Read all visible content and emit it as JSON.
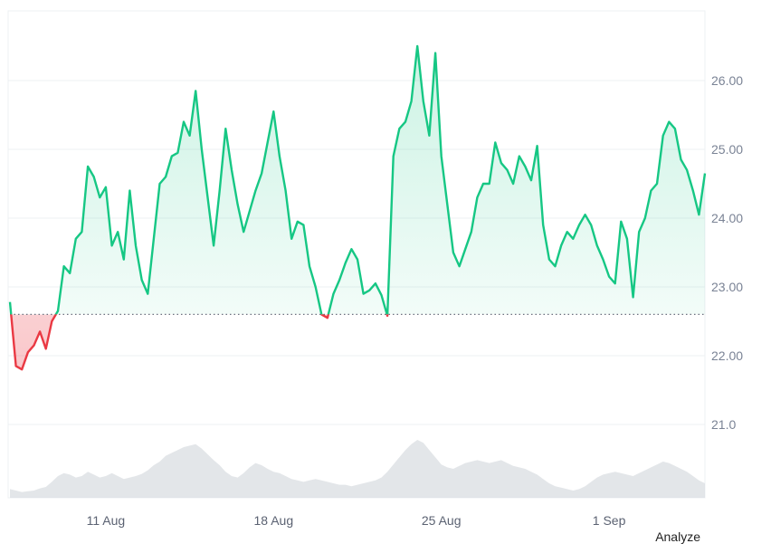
{
  "chart_data": {
    "type": "area",
    "baseline": 22.6,
    "ylim": [
      20.0,
      27.0
    ],
    "y_ticks": [
      "21.0",
      "22.00",
      "23.00",
      "24.00",
      "25.00",
      "26.00"
    ],
    "x_ticks": [
      "11 Aug",
      "18 Aug",
      "25 Aug",
      "1 Sep"
    ],
    "x": [
      "2024-08-07",
      "2024-08-07 06:00",
      "2024-08-07 12:00",
      "2024-08-07 18:00",
      "2024-08-08",
      "2024-08-08 06:00",
      "2024-08-08 12:00",
      "2024-08-08 18:00",
      "2024-08-09",
      "2024-08-09 06:00",
      "2024-08-09 12:00",
      "2024-08-09 18:00",
      "2024-08-10",
      "2024-08-10 06:00",
      "2024-08-10 12:00",
      "2024-08-10 18:00",
      "2024-08-11",
      "2024-08-11 06:00",
      "2024-08-11 12:00",
      "2024-08-11 18:00",
      "2024-08-12",
      "2024-08-12 06:00",
      "2024-08-12 12:00",
      "2024-08-12 18:00",
      "2024-08-13",
      "2024-08-13 06:00",
      "2024-08-13 12:00",
      "2024-08-13 18:00",
      "2024-08-14",
      "2024-08-14 06:00",
      "2024-08-14 12:00",
      "2024-08-14 18:00",
      "2024-08-15",
      "2024-08-15 06:00",
      "2024-08-15 12:00",
      "2024-08-15 18:00",
      "2024-08-16",
      "2024-08-16 06:00",
      "2024-08-16 12:00",
      "2024-08-16 18:00",
      "2024-08-17",
      "2024-08-17 06:00",
      "2024-08-17 12:00",
      "2024-08-17 18:00",
      "2024-08-18",
      "2024-08-18 06:00",
      "2024-08-18 12:00",
      "2024-08-18 18:00",
      "2024-08-19",
      "2024-08-19 06:00",
      "2024-08-19 12:00",
      "2024-08-19 18:00",
      "2024-08-20",
      "2024-08-20 06:00",
      "2024-08-20 12:00",
      "2024-08-20 18:00",
      "2024-08-21",
      "2024-08-21 06:00",
      "2024-08-21 12:00",
      "2024-08-21 18:00",
      "2024-08-22",
      "2024-08-22 06:00",
      "2024-08-22 12:00",
      "2024-08-22 18:00",
      "2024-08-23",
      "2024-08-23 06:00",
      "2024-08-23 12:00",
      "2024-08-23 18:00",
      "2024-08-24",
      "2024-08-24 06:00",
      "2024-08-24 12:00",
      "2024-08-24 18:00",
      "2024-08-25",
      "2024-08-25 06:00",
      "2024-08-25 12:00",
      "2024-08-25 18:00",
      "2024-08-26",
      "2024-08-26 06:00",
      "2024-08-26 12:00",
      "2024-08-26 18:00",
      "2024-08-27",
      "2024-08-27 06:00",
      "2024-08-27 12:00",
      "2024-08-27 18:00",
      "2024-08-28",
      "2024-08-28 06:00",
      "2024-08-28 12:00",
      "2024-08-28 18:00",
      "2024-08-29",
      "2024-08-29 06:00",
      "2024-08-29 12:00",
      "2024-08-29 18:00",
      "2024-08-30",
      "2024-08-30 06:00",
      "2024-08-30 12:00",
      "2024-08-30 18:00",
      "2024-08-31",
      "2024-08-31 06:00",
      "2024-08-31 12:00",
      "2024-08-31 18:00",
      "2024-09-01",
      "2024-09-01 06:00",
      "2024-09-01 12:00",
      "2024-09-01 18:00",
      "2024-09-02",
      "2024-09-02 06:00",
      "2024-09-02 12:00",
      "2024-09-02 18:00",
      "2024-09-03",
      "2024-09-03 06:00",
      "2024-09-03 12:00",
      "2024-09-03 18:00",
      "2024-09-04",
      "2024-09-04 06:00",
      "2024-09-04 12:00",
      "2024-09-04 18:00",
      "2024-09-05"
    ],
    "y": [
      22.78,
      21.85,
      21.8,
      22.05,
      22.15,
      22.35,
      22.1,
      22.5,
      22.65,
      23.3,
      23.2,
      23.7,
      23.8,
      24.75,
      24.6,
      24.3,
      24.45,
      23.6,
      23.8,
      23.4,
      24.4,
      23.6,
      23.1,
      22.9,
      23.7,
      24.5,
      24.6,
      24.9,
      24.95,
      25.4,
      25.2,
      25.85,
      25.0,
      24.3,
      23.6,
      24.4,
      25.3,
      24.7,
      24.2,
      23.8,
      24.1,
      24.4,
      24.65,
      25.1,
      25.55,
      24.9,
      24.4,
      23.7,
      23.95,
      23.9,
      23.3,
      23.0,
      22.6,
      22.55,
      22.9,
      23.1,
      23.35,
      23.55,
      23.4,
      22.9,
      22.95,
      23.05,
      22.88,
      22.58,
      24.9,
      25.3,
      25.4,
      25.7,
      26.5,
      25.7,
      25.2,
      26.4,
      24.9,
      24.2,
      23.5,
      23.3,
      23.55,
      23.8,
      24.3,
      24.5,
      24.5,
      25.1,
      24.8,
      24.7,
      24.5,
      24.9,
      24.75,
      24.55,
      25.05,
      23.9,
      23.4,
      23.3,
      23.6,
      23.8,
      23.7,
      23.9,
      24.05,
      23.9,
      23.6,
      23.4,
      23.15,
      23.05,
      23.95,
      23.7,
      22.85,
      23.8,
      24.0,
      24.4,
      24.5,
      25.2,
      25.4,
      25.3,
      24.85,
      24.7,
      24.4,
      24.05,
      24.65
    ],
    "volume": [
      0.12,
      0.1,
      0.08,
      0.09,
      0.1,
      0.13,
      0.15,
      0.22,
      0.3,
      0.34,
      0.32,
      0.28,
      0.3,
      0.36,
      0.32,
      0.28,
      0.3,
      0.34,
      0.3,
      0.26,
      0.28,
      0.3,
      0.33,
      0.38,
      0.45,
      0.5,
      0.58,
      0.62,
      0.66,
      0.7,
      0.72,
      0.74,
      0.68,
      0.6,
      0.52,
      0.45,
      0.36,
      0.3,
      0.28,
      0.34,
      0.42,
      0.48,
      0.45,
      0.4,
      0.36,
      0.34,
      0.3,
      0.26,
      0.24,
      0.22,
      0.24,
      0.26,
      0.24,
      0.22,
      0.2,
      0.18,
      0.18,
      0.16,
      0.18,
      0.2,
      0.22,
      0.24,
      0.28,
      0.36,
      0.46,
      0.56,
      0.66,
      0.74,
      0.8,
      0.76,
      0.66,
      0.56,
      0.46,
      0.42,
      0.4,
      0.44,
      0.48,
      0.5,
      0.52,
      0.5,
      0.48,
      0.5,
      0.52,
      0.48,
      0.44,
      0.42,
      0.4,
      0.36,
      0.32,
      0.26,
      0.2,
      0.16,
      0.14,
      0.12,
      0.1,
      0.12,
      0.16,
      0.22,
      0.28,
      0.32,
      0.34,
      0.36,
      0.34,
      0.32,
      0.3,
      0.34,
      0.38,
      0.42,
      0.46,
      0.5,
      0.48,
      0.44,
      0.4,
      0.36,
      0.3,
      0.24,
      0.2
    ],
    "colors": {
      "up_line": "#16c784",
      "down_line": "#ea3943",
      "up_fill": "#16c784",
      "down_fill": "#ea3943",
      "volume": "#dadde2",
      "grid": "#eef0f3",
      "baseline": "#6b7280"
    },
    "grid": true
  },
  "footer": {
    "analyze_label": "Analyze"
  }
}
